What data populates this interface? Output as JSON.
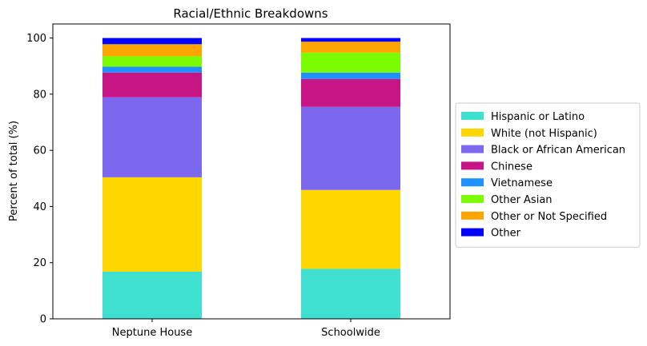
{
  "chart_data": {
    "type": "bar",
    "stacked": true,
    "title": "Racial/Ethnic Breakdowns",
    "xlabel": "",
    "ylabel": "Percent of total (%)",
    "ylim": [
      0,
      105
    ],
    "yticks": [
      0,
      20,
      40,
      60,
      80,
      100
    ],
    "grid": false,
    "legend_position": "right-outside",
    "categories": [
      "Neptune House",
      "Schoolwide"
    ],
    "series": [
      {
        "name": "Hispanic or Latino",
        "color": "#40e0d0",
        "values": [
          16.8,
          17.8
        ]
      },
      {
        "name": "White (not Hispanic)",
        "color": "#ffd700",
        "values": [
          33.6,
          28.1
        ]
      },
      {
        "name": "Black or African American",
        "color": "#7b68ee",
        "values": [
          28.5,
          29.6
        ]
      },
      {
        "name": "Chinese",
        "color": "#c71585",
        "values": [
          8.8,
          9.9
        ]
      },
      {
        "name": "Vietnamese",
        "color": "#1e90ff",
        "values": [
          2.1,
          2.3
        ]
      },
      {
        "name": "Other Asian",
        "color": "#7cfc00",
        "values": [
          3.7,
          7.1
        ]
      },
      {
        "name": "Other or Not Specified",
        "color": "#ffa500",
        "values": [
          4.3,
          3.9
        ]
      },
      {
        "name": "Other",
        "color": "#0000ff",
        "values": [
          2.2,
          1.3
        ]
      }
    ]
  }
}
